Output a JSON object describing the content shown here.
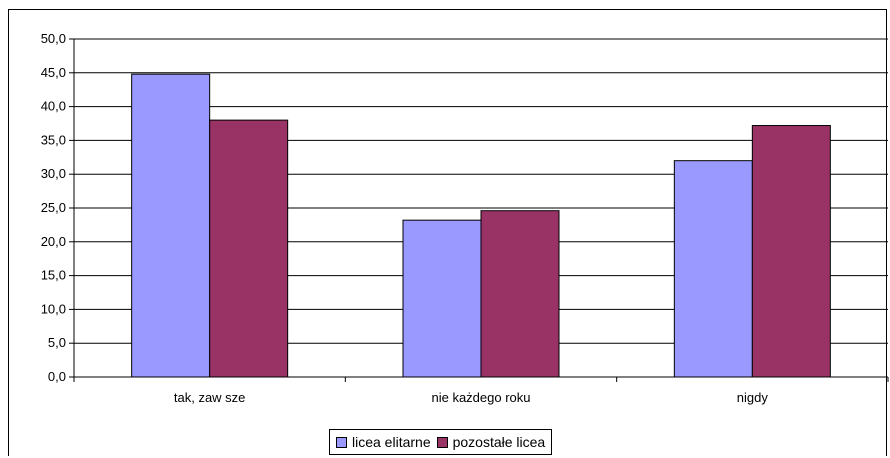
{
  "chart_data": {
    "type": "bar",
    "categories": [
      "tak, zaw sze",
      "nie każdego roku",
      "nigdy"
    ],
    "series": [
      {
        "name": "licea elitarne",
        "color": "#9999ff",
        "values": [
          44.8,
          23.2,
          32.0
        ]
      },
      {
        "name": "pozostałe licea",
        "color": "#993366",
        "values": [
          38.0,
          24.6,
          37.2
        ]
      }
    ],
    "ylim": [
      0,
      50
    ],
    "ytick_step": 5,
    "ytick_labels": [
      "0,0",
      "5,0",
      "10,0",
      "15,0",
      "20,0",
      "25,0",
      "30,0",
      "35,0",
      "40,0",
      "45,0",
      "50,0"
    ],
    "grid": true,
    "legend_position": "bottom"
  }
}
